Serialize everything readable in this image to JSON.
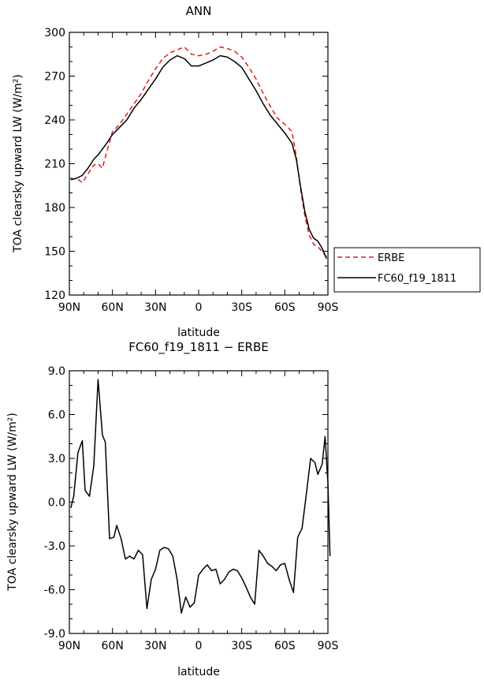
{
  "chart_data": [
    {
      "type": "line",
      "title": "ANN",
      "xlabel": "latitude",
      "ylabel": "TOA clearsky upward LW (W/m²)",
      "xlim": [
        90,
        -90
      ],
      "ylim": [
        120,
        300
      ],
      "xticks": [
        90,
        60,
        30,
        0,
        -30,
        -60,
        -90
      ],
      "xtick_labels": [
        "90N",
        "60N",
        "30N",
        "0",
        "30S",
        "60S",
        "90S"
      ],
      "yticks": [
        120,
        150,
        180,
        210,
        240,
        270,
        300
      ],
      "ytick_labels": [
        "120",
        "150",
        "180",
        "210",
        "240",
        "270",
        "300"
      ],
      "legend_position": "right",
      "series": [
        {
          "name": "ERBE",
          "color": "#e8191a",
          "dash": "dashed",
          "points": [
            [
              89,
              199
            ],
            [
              85,
              200
            ],
            [
              81,
              197
            ],
            [
              77,
              203
            ],
            [
              73,
              209
            ],
            [
              70,
              210
            ],
            [
              67,
              207
            ],
            [
              64,
              218
            ],
            [
              60,
              232
            ],
            [
              55,
              237
            ],
            [
              50,
              244
            ],
            [
              45,
              251
            ],
            [
              40,
              258
            ],
            [
              35,
              267
            ],
            [
              30,
              275
            ],
            [
              25,
              282
            ],
            [
              20,
              286
            ],
            [
              15,
              288
            ],
            [
              10,
              290
            ],
            [
              5,
              285
            ],
            [
              0,
              284
            ],
            [
              -5,
              285
            ],
            [
              -10,
              287
            ],
            [
              -15,
              290
            ],
            [
              -20,
              289
            ],
            [
              -25,
              287
            ],
            [
              -30,
              283
            ],
            [
              -35,
              276
            ],
            [
              -40,
              268
            ],
            [
              -45,
              258
            ],
            [
              -50,
              249
            ],
            [
              -55,
              241
            ],
            [
              -60,
              237
            ],
            [
              -65,
              232
            ],
            [
              -68,
              215
            ],
            [
              -71,
              192
            ],
            [
              -74,
              174
            ],
            [
              -77,
              161
            ],
            [
              -80,
              155
            ],
            [
              -83,
              153
            ],
            [
              -86,
              150
            ],
            [
              -89,
              146
            ]
          ]
        },
        {
          "name": "FC60_f19_1811",
          "color": "#000000",
          "dash": "solid",
          "points": [
            [
              89,
              199
            ],
            [
              85,
              200
            ],
            [
              81,
              202
            ],
            [
              77,
              207
            ],
            [
              73,
              213
            ],
            [
              70,
              216
            ],
            [
              67,
              220
            ],
            [
              64,
              224
            ],
            [
              60,
              230
            ],
            [
              55,
              235
            ],
            [
              50,
              240
            ],
            [
              45,
              248
            ],
            [
              40,
              254
            ],
            [
              35,
              261
            ],
            [
              30,
              268
            ],
            [
              25,
              276
            ],
            [
              20,
              281
            ],
            [
              15,
              284
            ],
            [
              10,
              282
            ],
            [
              5,
              277
            ],
            [
              0,
              277
            ],
            [
              -5,
              279
            ],
            [
              -10,
              281
            ],
            [
              -15,
              284
            ],
            [
              -20,
              283
            ],
            [
              -25,
              280
            ],
            [
              -30,
              276
            ],
            [
              -35,
              268
            ],
            [
              -40,
              260
            ],
            [
              -45,
              251
            ],
            [
              -50,
              243
            ],
            [
              -55,
              237
            ],
            [
              -60,
              231
            ],
            [
              -65,
              224
            ],
            [
              -68,
              213
            ],
            [
              -71,
              194
            ],
            [
              -74,
              177
            ],
            [
              -77,
              165
            ],
            [
              -80,
              159
            ],
            [
              -83,
              157
            ],
            [
              -86,
              152
            ],
            [
              -89,
              145
            ]
          ]
        }
      ]
    },
    {
      "type": "line",
      "title": "FC60_f19_1811 − ERBE",
      "xlabel": "latitude",
      "ylabel": "TOA clearsky upward LW (W/m²)",
      "xlim": [
        90,
        -90
      ],
      "ylim": [
        -9.0,
        9.0
      ],
      "xticks": [
        90,
        60,
        30,
        0,
        -30,
        -60,
        -90
      ],
      "xtick_labels": [
        "90N",
        "60N",
        "30N",
        "0",
        "30S",
        "60S",
        "90S"
      ],
      "yticks": [
        -9,
        -6,
        -3,
        0,
        3,
        6,
        9
      ],
      "ytick_labels": [
        "-9.0",
        "-6.0",
        "-3.0",
        "0.0",
        "3.0",
        "6.0",
        "9.0"
      ],
      "series": [
        {
          "name": "",
          "color": "#000000",
          "dash": "solid",
          "points": [
            [
              89,
              -0.4
            ],
            [
              87,
              0.4
            ],
            [
              84,
              3.4
            ],
            [
              81,
              4.2
            ],
            [
              79,
              0.8
            ],
            [
              76,
              0.4
            ],
            [
              73,
              2.5
            ],
            [
              70,
              8.4
            ],
            [
              67,
              4.6
            ],
            [
              65,
              4.1
            ],
            [
              62,
              -2.5
            ],
            [
              59,
              -2.4
            ],
            [
              57,
              -1.6
            ],
            [
              54,
              -2.5
            ],
            [
              51,
              -3.9
            ],
            [
              48,
              -3.7
            ],
            [
              45,
              -3.9
            ],
            [
              42,
              -3.3
            ],
            [
              39,
              -3.6
            ],
            [
              36,
              -7.3
            ],
            [
              33,
              -5.3
            ],
            [
              30,
              -4.6
            ],
            [
              27,
              -3.3
            ],
            [
              24,
              -3.1
            ],
            [
              21,
              -3.2
            ],
            [
              18,
              -3.7
            ],
            [
              15,
              -5.3
            ],
            [
              12,
              -7.6
            ],
            [
              9,
              -6.5
            ],
            [
              6,
              -7.2
            ],
            [
              3,
              -6.9
            ],
            [
              0,
              -5.0
            ],
            [
              -3,
              -4.6
            ],
            [
              -6,
              -4.3
            ],
            [
              -9,
              -4.7
            ],
            [
              -12,
              -4.6
            ],
            [
              -15,
              -5.6
            ],
            [
              -18,
              -5.3
            ],
            [
              -21,
              -4.8
            ],
            [
              -24,
              -4.6
            ],
            [
              -27,
              -4.7
            ],
            [
              -30,
              -5.2
            ],
            [
              -33,
              -5.8
            ],
            [
              -36,
              -6.5
            ],
            [
              -39,
              -7.0
            ],
            [
              -42,
              -3.3
            ],
            [
              -45,
              -3.7
            ],
            [
              -48,
              -4.2
            ],
            [
              -51,
              -4.4
            ],
            [
              -54,
              -4.7
            ],
            [
              -57,
              -4.3
            ],
            [
              -60,
              -4.2
            ],
            [
              -63,
              -5.3
            ],
            [
              -66,
              -6.2
            ],
            [
              -69,
              -2.4
            ],
            [
              -72,
              -1.8
            ],
            [
              -75,
              0.6
            ],
            [
              -78,
              3.0
            ],
            [
              -81,
              2.7
            ],
            [
              -83,
              1.9
            ],
            [
              -86,
              2.6
            ],
            [
              -88,
              4.5
            ],
            [
              -90,
              1.3
            ],
            [
              -91.5,
              -3.7
            ]
          ]
        }
      ]
    }
  ]
}
